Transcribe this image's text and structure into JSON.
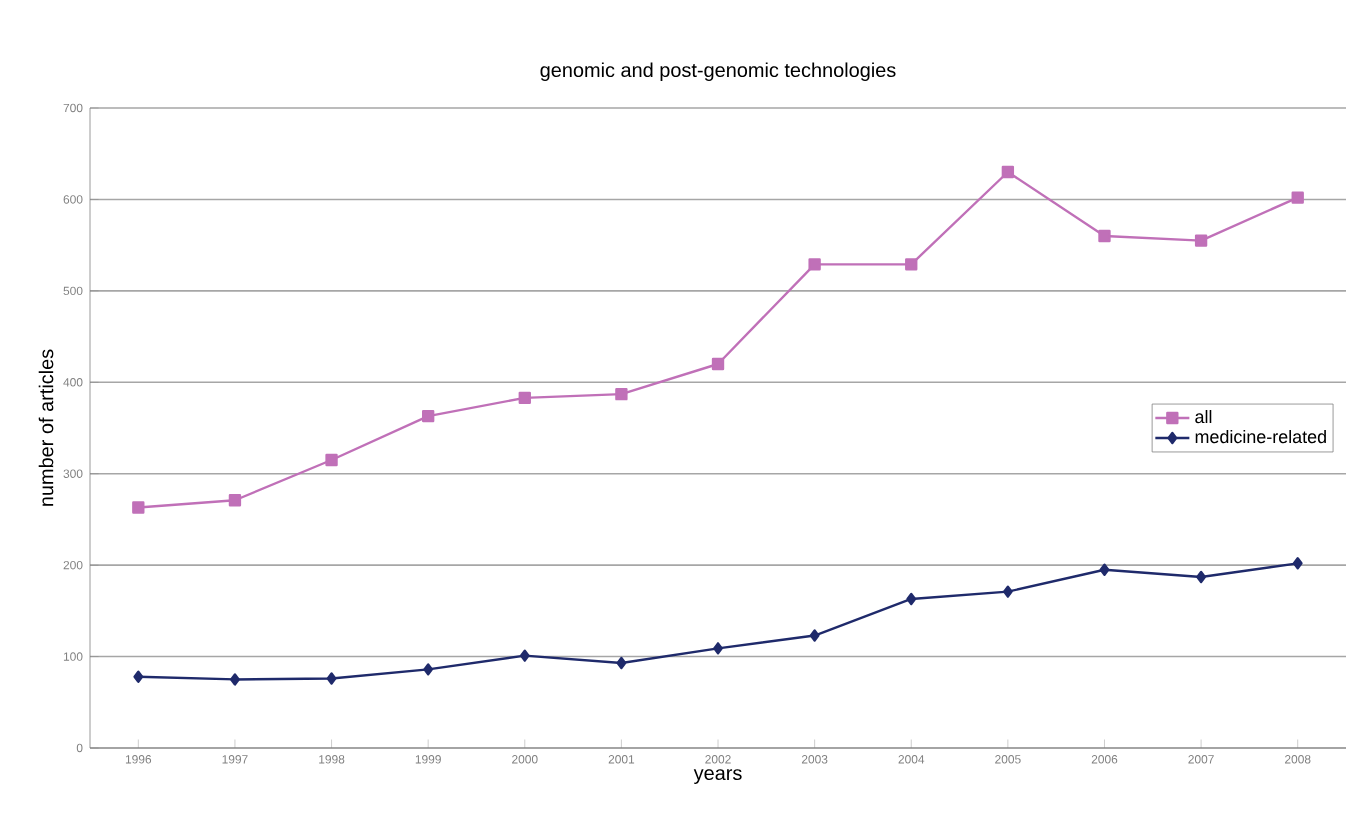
{
  "chart_data": {
    "type": "line",
    "title": "genomic and post-genomic technologies",
    "xlabel": "years",
    "ylabel": "number of articles",
    "categories": [
      "1996",
      "1997",
      "1998",
      "1999",
      "2000",
      "2001",
      "2002",
      "2003",
      "2004",
      "2005",
      "2006",
      "2007",
      "2008"
    ],
    "series": [
      {
        "name": "all",
        "color": "#c070b8",
        "marker": "square",
        "values": [
          263,
          271,
          315,
          363,
          383,
          387,
          420,
          529,
          529,
          630,
          560,
          555,
          602
        ]
      },
      {
        "name": "medicine-related",
        "color": "#1f2a6b",
        "marker": "diamond",
        "values": [
          78,
          75,
          76,
          86,
          101,
          93,
          109,
          123,
          163,
          171,
          195,
          187,
          202
        ]
      }
    ],
    "ylim": [
      0,
      700
    ],
    "yticks": [
      0,
      100,
      200,
      300,
      400,
      500,
      600,
      700
    ],
    "grid": "y",
    "legend": "right",
    "line_style": "solid"
  }
}
